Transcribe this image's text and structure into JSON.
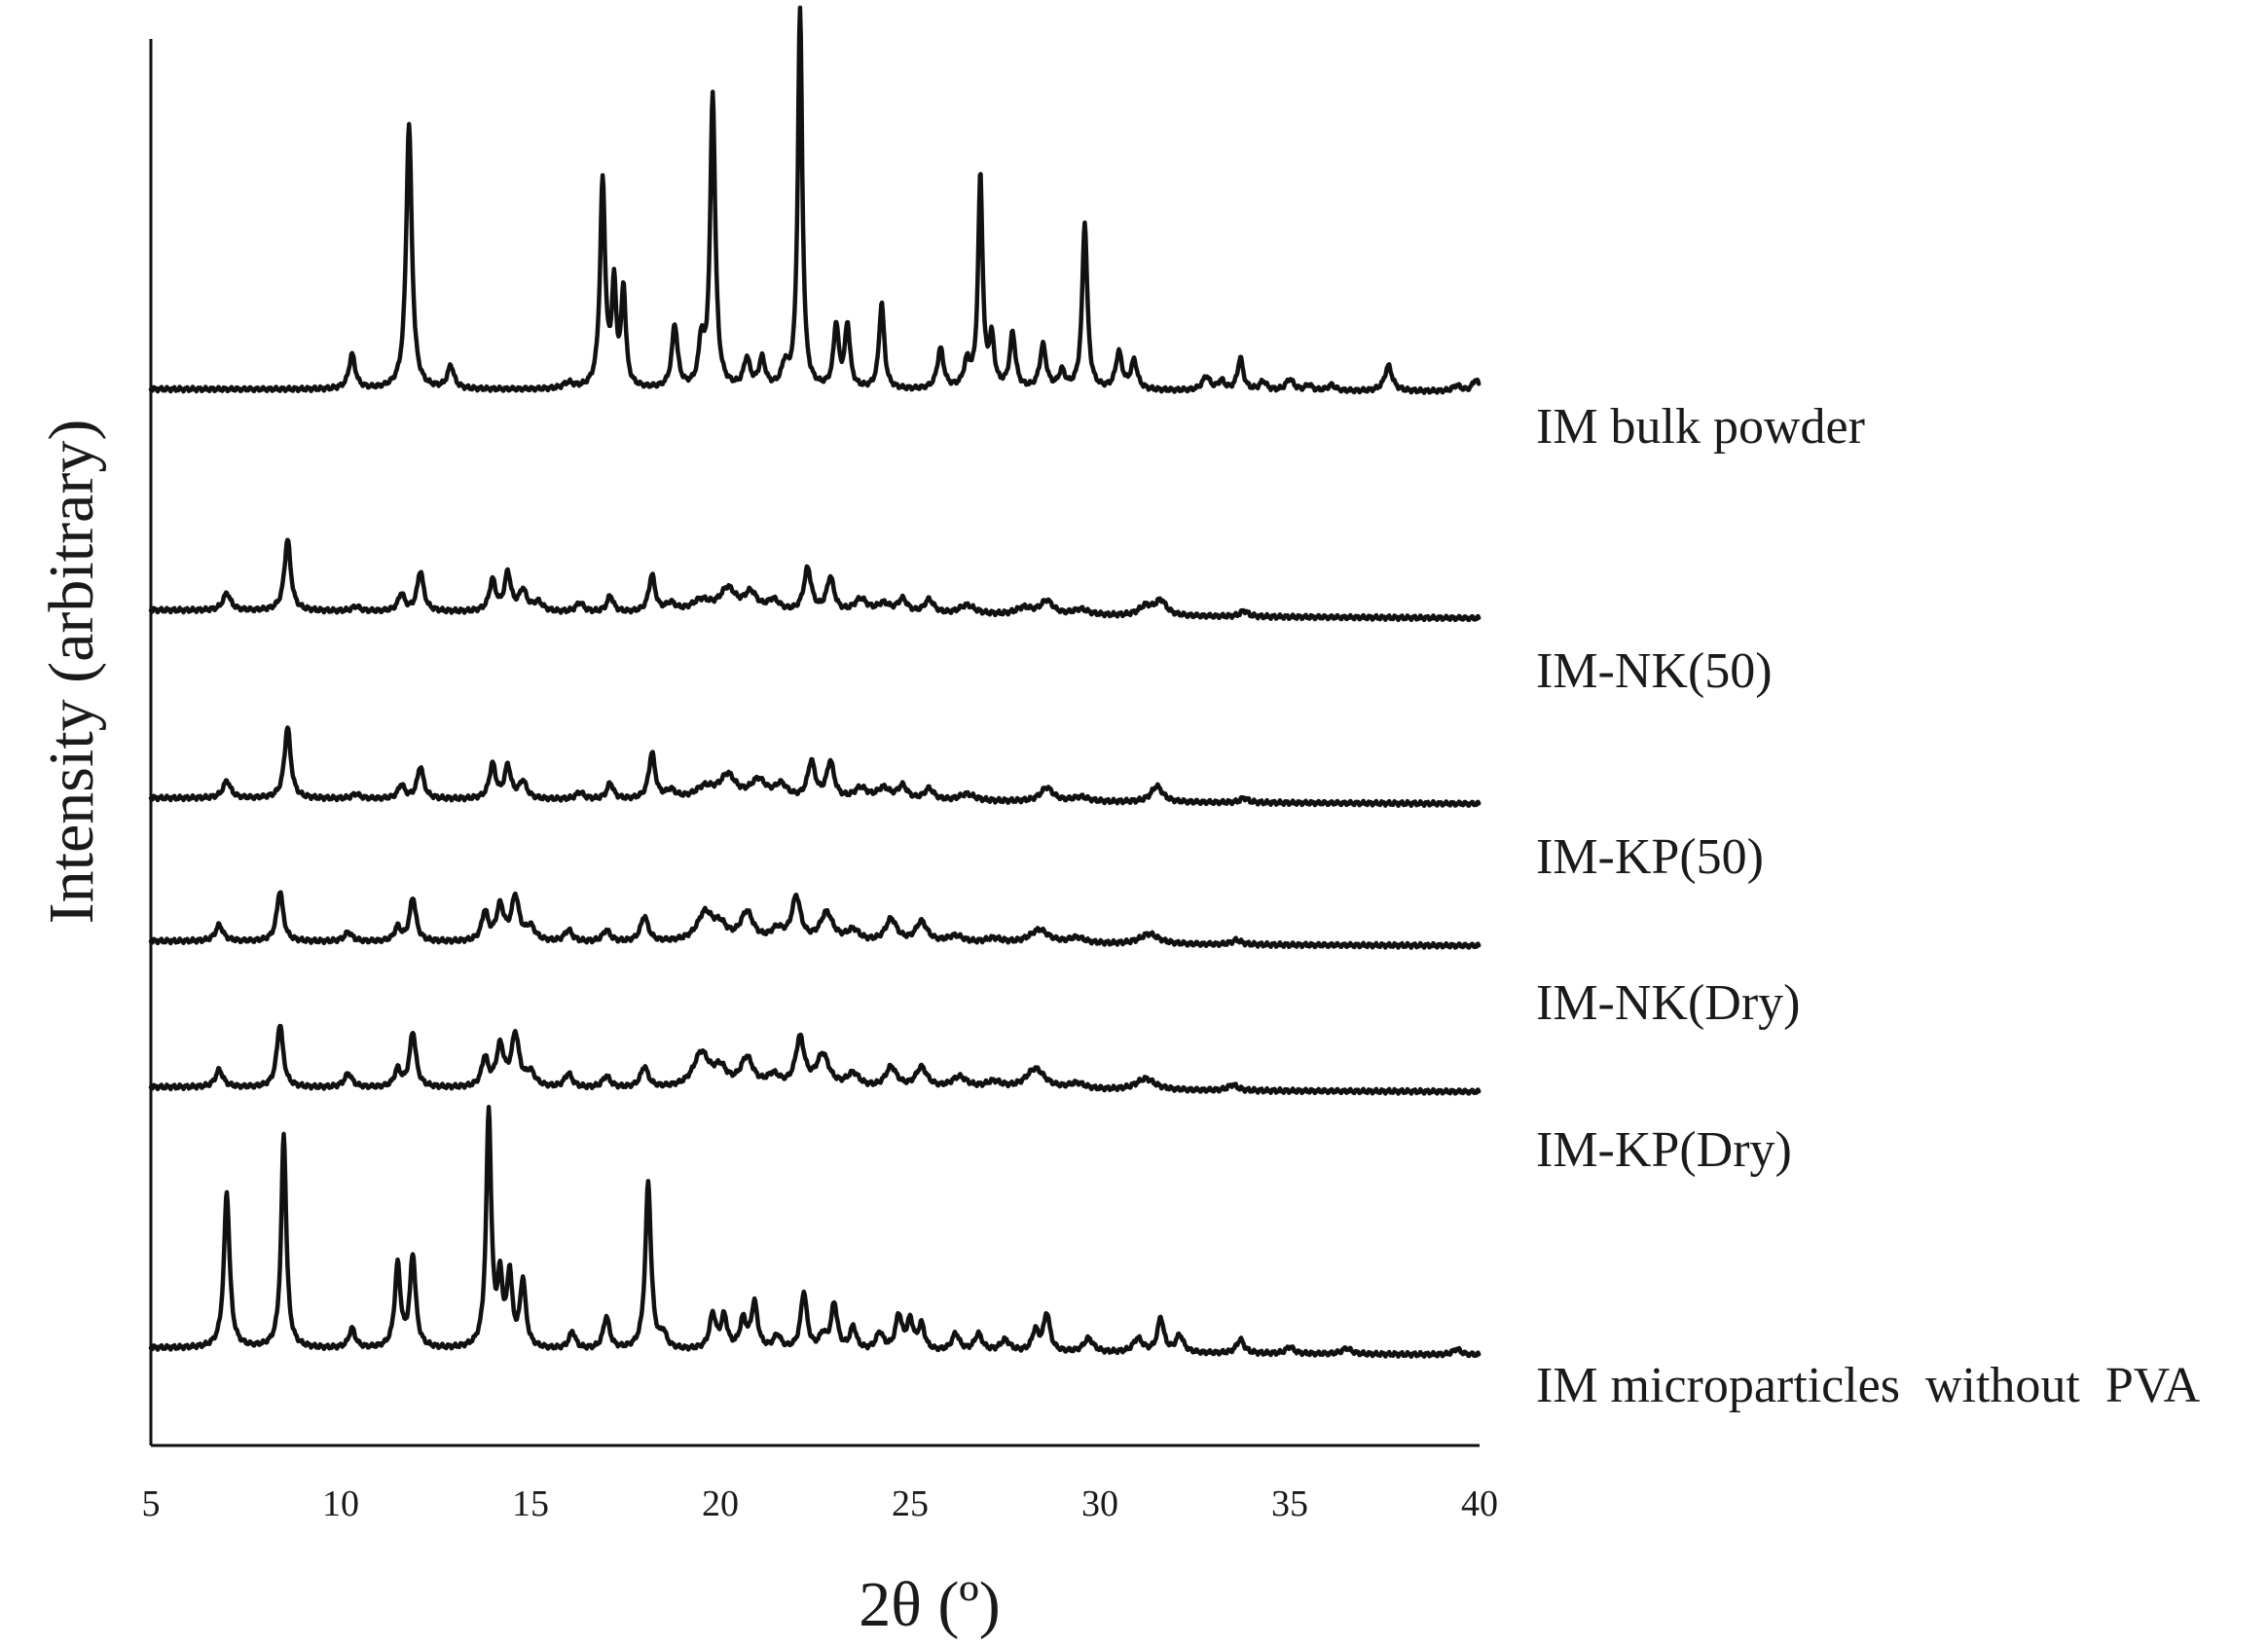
{
  "chart_data": {
    "type": "line",
    "title": "",
    "xlabel": "2θ (º)",
    "ylabel": "Intensity (arbitrary)",
    "xlim": [
      5,
      40
    ],
    "x_ticks": [
      "5",
      "10",
      "15",
      "20",
      "25",
      "30",
      "35",
      "40"
    ],
    "y_ticks": [],
    "grid": false,
    "legend": "labels at right end of each trace",
    "series": [
      {
        "name": "IM bulk powder",
        "baseline": 0.62,
        "drift": -0.02,
        "peaks": [
          [
            10.3,
            0.3,
            0.1
          ],
          [
            11.8,
            2.3,
            0.09
          ],
          [
            12.9,
            0.2,
            0.1
          ],
          [
            16.0,
            0.05,
            0.15
          ],
          [
            16.9,
            1.8,
            0.08
          ],
          [
            17.2,
            0.85,
            0.07
          ],
          [
            17.45,
            0.85,
            0.07
          ],
          [
            18.8,
            0.55,
            0.09
          ],
          [
            19.5,
            0.38,
            0.08
          ],
          [
            19.8,
            2.55,
            0.08
          ],
          [
            20.7,
            0.25,
            0.1
          ],
          [
            21.1,
            0.25,
            0.1
          ],
          [
            21.7,
            0.18,
            0.1
          ],
          [
            22.1,
            3.3,
            0.07
          ],
          [
            23.05,
            0.55,
            0.08
          ],
          [
            23.35,
            0.55,
            0.08
          ],
          [
            24.25,
            0.75,
            0.08
          ],
          [
            25.8,
            0.35,
            0.1
          ],
          [
            26.5,
            0.22,
            0.1
          ],
          [
            26.85,
            1.85,
            0.07
          ],
          [
            27.15,
            0.42,
            0.08
          ],
          [
            27.7,
            0.48,
            0.09
          ],
          [
            28.5,
            0.38,
            0.1
          ],
          [
            29.0,
            0.15,
            0.1
          ],
          [
            29.6,
            1.45,
            0.08
          ],
          [
            30.5,
            0.32,
            0.1
          ],
          [
            30.9,
            0.25,
            0.1
          ],
          [
            32.8,
            0.12,
            0.12
          ],
          [
            33.2,
            0.08,
            0.1
          ],
          [
            33.7,
            0.28,
            0.09
          ],
          [
            34.3,
            0.08,
            0.1
          ],
          [
            35.0,
            0.1,
            0.12
          ],
          [
            35.5,
            0.05,
            0.1
          ],
          [
            36.1,
            0.05,
            0.12
          ],
          [
            37.6,
            0.22,
            0.12
          ],
          [
            39.4,
            0.05,
            0.12
          ],
          [
            39.9,
            0.1,
            0.1
          ]
        ]
      },
      {
        "name": "IM-NK(50)",
        "baseline": 0.62,
        "drift": -0.07,
        "peaks": [
          [
            7.0,
            0.15,
            0.12
          ],
          [
            8.6,
            0.62,
            0.1
          ],
          [
            10.4,
            0.04,
            0.12
          ],
          [
            11.6,
            0.15,
            0.1
          ],
          [
            12.1,
            0.35,
            0.1
          ],
          [
            14.0,
            0.27,
            0.1
          ],
          [
            14.4,
            0.33,
            0.1
          ],
          [
            14.8,
            0.18,
            0.12
          ],
          [
            15.2,
            0.08,
            0.15
          ],
          [
            16.3,
            0.08,
            0.12
          ],
          [
            17.1,
            0.14,
            0.1
          ],
          [
            18.2,
            0.32,
            0.1
          ],
          [
            18.7,
            0.07,
            0.15
          ],
          [
            19.5,
            0.1,
            0.3
          ],
          [
            20.2,
            0.2,
            0.25
          ],
          [
            20.8,
            0.16,
            0.2
          ],
          [
            21.4,
            0.1,
            0.2
          ],
          [
            22.3,
            0.38,
            0.12
          ],
          [
            22.9,
            0.3,
            0.12
          ],
          [
            23.7,
            0.12,
            0.2
          ],
          [
            24.3,
            0.08,
            0.2
          ],
          [
            24.8,
            0.12,
            0.15
          ],
          [
            25.5,
            0.12,
            0.15
          ],
          [
            26.5,
            0.08,
            0.25
          ],
          [
            28.0,
            0.06,
            0.25
          ],
          [
            28.6,
            0.12,
            0.2
          ],
          [
            29.5,
            0.05,
            0.25
          ],
          [
            31.2,
            0.08,
            0.2
          ],
          [
            31.6,
            0.13,
            0.18
          ],
          [
            33.8,
            0.05,
            0.12
          ]
        ]
      },
      {
        "name": "IM-KP(50)",
        "baseline": 0.62,
        "drift": -0.05,
        "peaks": [
          [
            7.0,
            0.15,
            0.12
          ],
          [
            8.6,
            0.62,
            0.1
          ],
          [
            10.4,
            0.04,
            0.12
          ],
          [
            11.6,
            0.12,
            0.1
          ],
          [
            12.1,
            0.28,
            0.1
          ],
          [
            14.0,
            0.3,
            0.1
          ],
          [
            14.4,
            0.28,
            0.1
          ],
          [
            14.8,
            0.15,
            0.12
          ],
          [
            16.3,
            0.06,
            0.12
          ],
          [
            17.1,
            0.14,
            0.1
          ],
          [
            18.2,
            0.4,
            0.1
          ],
          [
            18.7,
            0.07,
            0.15
          ],
          [
            19.6,
            0.1,
            0.3
          ],
          [
            20.2,
            0.2,
            0.25
          ],
          [
            21.0,
            0.16,
            0.25
          ],
          [
            21.6,
            0.12,
            0.2
          ],
          [
            22.4,
            0.32,
            0.12
          ],
          [
            22.9,
            0.32,
            0.12
          ],
          [
            23.7,
            0.1,
            0.2
          ],
          [
            24.3,
            0.1,
            0.2
          ],
          [
            24.8,
            0.12,
            0.15
          ],
          [
            25.5,
            0.1,
            0.15
          ],
          [
            26.5,
            0.06,
            0.25
          ],
          [
            28.6,
            0.12,
            0.2
          ],
          [
            29.5,
            0.04,
            0.25
          ],
          [
            31.5,
            0.14,
            0.18
          ],
          [
            33.8,
            0.04,
            0.12
          ]
        ]
      },
      {
        "name": "IM-NK(Dry)",
        "baseline": 0.62,
        "drift": -0.04,
        "peaks": [
          [
            6.8,
            0.14,
            0.12
          ],
          [
            8.4,
            0.44,
            0.1
          ],
          [
            10.2,
            0.08,
            0.12
          ],
          [
            11.5,
            0.12,
            0.1
          ],
          [
            11.9,
            0.38,
            0.1
          ],
          [
            13.8,
            0.25,
            0.1
          ],
          [
            14.2,
            0.3,
            0.12
          ],
          [
            14.6,
            0.38,
            0.12
          ],
          [
            15.0,
            0.12,
            0.15
          ],
          [
            16.0,
            0.1,
            0.12
          ],
          [
            17.0,
            0.1,
            0.12
          ],
          [
            18.0,
            0.22,
            0.12
          ],
          [
            19.6,
            0.25,
            0.25
          ],
          [
            20.0,
            0.12,
            0.2
          ],
          [
            20.7,
            0.25,
            0.2
          ],
          [
            21.5,
            0.1,
            0.2
          ],
          [
            22.0,
            0.38,
            0.14
          ],
          [
            22.8,
            0.25,
            0.2
          ],
          [
            23.5,
            0.1,
            0.2
          ],
          [
            24.5,
            0.2,
            0.18
          ],
          [
            25.3,
            0.18,
            0.18
          ],
          [
            26.2,
            0.06,
            0.25
          ],
          [
            27.2,
            0.04,
            0.25
          ],
          [
            28.4,
            0.12,
            0.3
          ],
          [
            29.4,
            0.05,
            0.25
          ],
          [
            31.3,
            0.09,
            0.3
          ],
          [
            33.6,
            0.04,
            0.15
          ]
        ]
      },
      {
        "name": "IM-KP(Dry)",
        "baseline": 0.62,
        "drift": -0.04,
        "peaks": [
          [
            6.8,
            0.15,
            0.12
          ],
          [
            8.4,
            0.55,
            0.1
          ],
          [
            10.2,
            0.12,
            0.12
          ],
          [
            11.5,
            0.15,
            0.1
          ],
          [
            11.9,
            0.48,
            0.1
          ],
          [
            13.8,
            0.25,
            0.1
          ],
          [
            14.2,
            0.35,
            0.12
          ],
          [
            14.6,
            0.45,
            0.12
          ],
          [
            15.0,
            0.12,
            0.15
          ],
          [
            16.0,
            0.12,
            0.12
          ],
          [
            17.0,
            0.1,
            0.12
          ],
          [
            18.0,
            0.18,
            0.12
          ],
          [
            19.5,
            0.3,
            0.25
          ],
          [
            20.0,
            0.15,
            0.2
          ],
          [
            20.7,
            0.25,
            0.2
          ],
          [
            21.4,
            0.1,
            0.2
          ],
          [
            22.1,
            0.42,
            0.14
          ],
          [
            22.7,
            0.28,
            0.2
          ],
          [
            23.5,
            0.12,
            0.2
          ],
          [
            24.5,
            0.18,
            0.18
          ],
          [
            25.3,
            0.18,
            0.18
          ],
          [
            26.3,
            0.1,
            0.25
          ],
          [
            27.2,
            0.06,
            0.25
          ],
          [
            28.3,
            0.18,
            0.3
          ],
          [
            29.4,
            0.05,
            0.25
          ],
          [
            31.2,
            0.1,
            0.3
          ],
          [
            33.5,
            0.05,
            0.15
          ]
        ]
      },
      {
        "name": "IM microparticles  without  PVA",
        "baseline": 0.62,
        "drift": -0.06,
        "peaks": [
          [
            7.0,
            1.35,
            0.09
          ],
          [
            8.5,
            1.85,
            0.08
          ],
          [
            10.3,
            0.17,
            0.1
          ],
          [
            11.5,
            0.72,
            0.09
          ],
          [
            11.9,
            0.8,
            0.09
          ],
          [
            13.9,
            2.05,
            0.08
          ],
          [
            14.2,
            0.55,
            0.08
          ],
          [
            14.45,
            0.62,
            0.08
          ],
          [
            14.8,
            0.58,
            0.09
          ],
          [
            16.1,
            0.15,
            0.1
          ],
          [
            17.0,
            0.28,
            0.1
          ],
          [
            18.1,
            1.45,
            0.09
          ],
          [
            18.5,
            0.12,
            0.1
          ],
          [
            19.8,
            0.3,
            0.1
          ],
          [
            20.1,
            0.28,
            0.1
          ],
          [
            20.6,
            0.25,
            0.1
          ],
          [
            20.9,
            0.4,
            0.1
          ],
          [
            21.5,
            0.12,
            0.12
          ],
          [
            22.2,
            0.5,
            0.1
          ],
          [
            22.7,
            0.12,
            0.1
          ],
          [
            23.0,
            0.4,
            0.1
          ],
          [
            23.5,
            0.2,
            0.1
          ],
          [
            24.2,
            0.15,
            0.12
          ],
          [
            24.7,
            0.3,
            0.1
          ],
          [
            25.0,
            0.25,
            0.1
          ],
          [
            25.3,
            0.22,
            0.1
          ],
          [
            26.2,
            0.15,
            0.12
          ],
          [
            26.8,
            0.15,
            0.12
          ],
          [
            27.5,
            0.1,
            0.15
          ],
          [
            28.3,
            0.18,
            0.1
          ],
          [
            28.6,
            0.33,
            0.1
          ],
          [
            29.7,
            0.12,
            0.15
          ],
          [
            31.0,
            0.12,
            0.15
          ],
          [
            31.6,
            0.3,
            0.1
          ],
          [
            32.1,
            0.15,
            0.12
          ],
          [
            33.7,
            0.12,
            0.12
          ],
          [
            35.0,
            0.06,
            0.12
          ],
          [
            36.5,
            0.05,
            0.15
          ],
          [
            39.4,
            0.05,
            0.12
          ]
        ]
      }
    ]
  }
}
